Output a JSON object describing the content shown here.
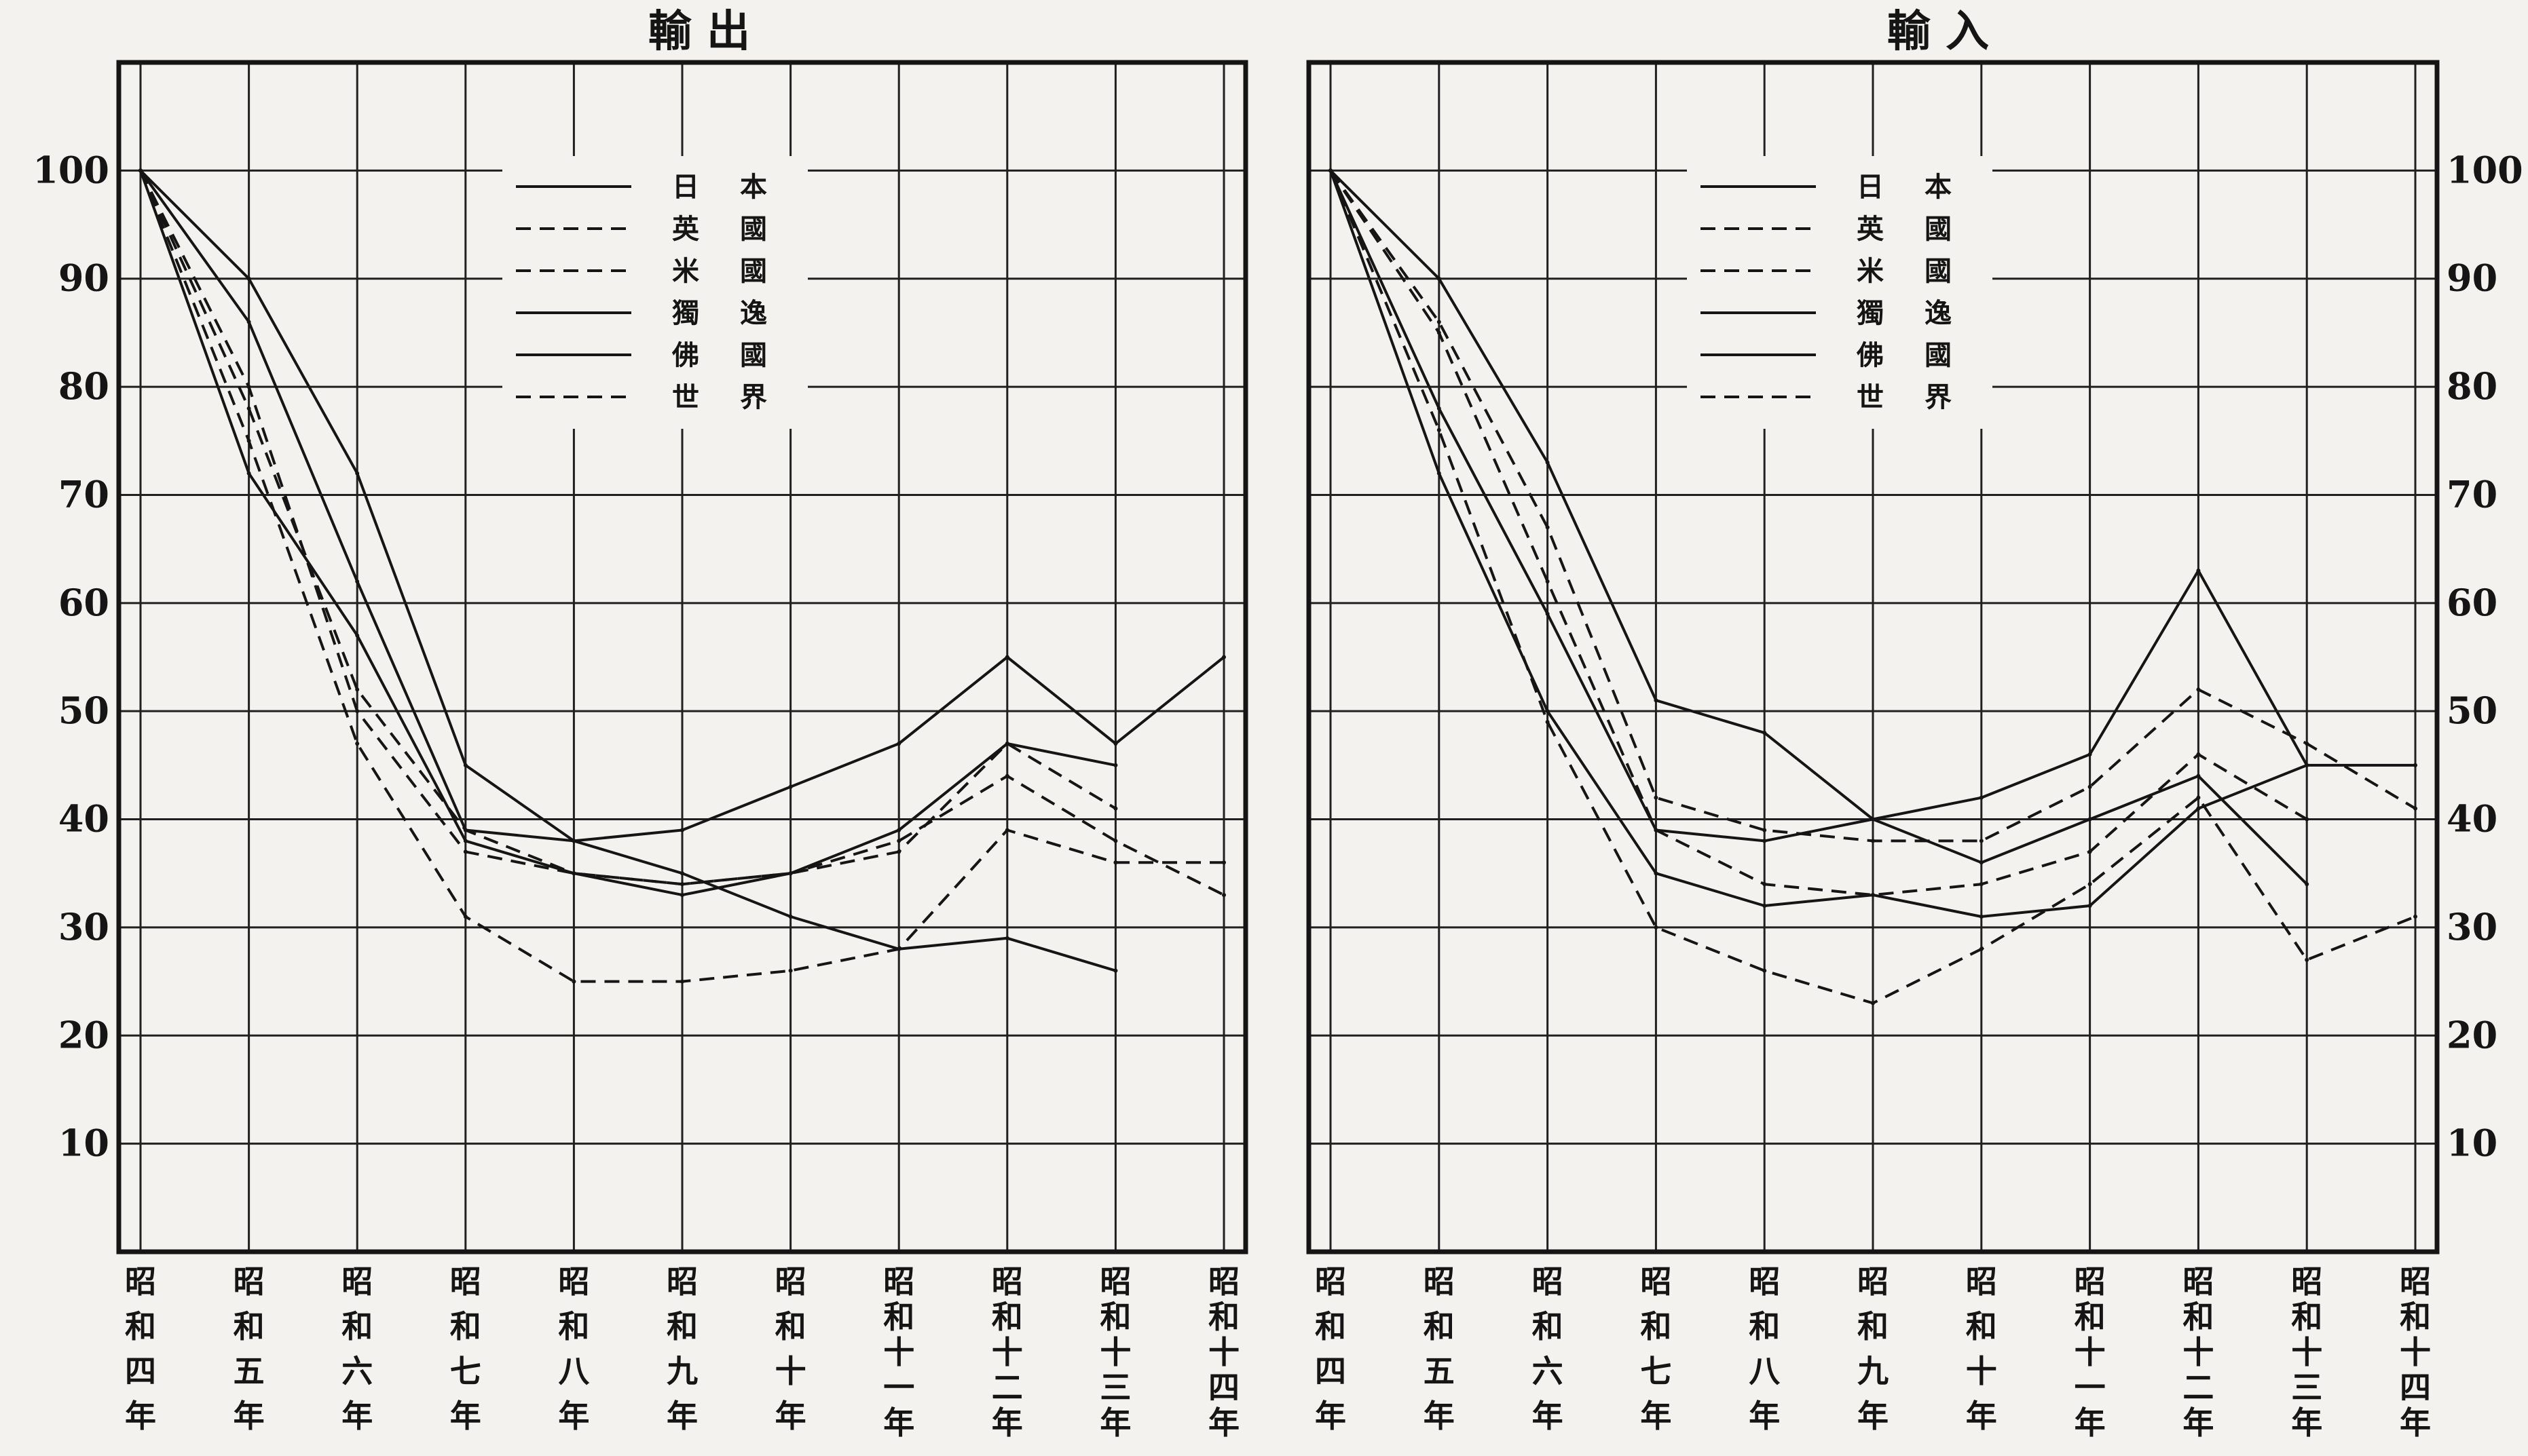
{
  "chart_data": [
    {
      "type": "line",
      "title": "輸 出",
      "categories": [
        "昭和四年",
        "昭和五年",
        "昭和六年",
        "昭和七年",
        "昭和八年",
        "昭和九年",
        "昭和十年",
        "昭和十一年",
        "昭和十二年",
        "昭和十三年",
        "昭和十四年"
      ],
      "yticks": [
        "100",
        "90",
        "80",
        "70",
        "60",
        "50",
        "40",
        "30",
        "20",
        "10"
      ],
      "ylim": [
        0,
        110
      ],
      "y_axis_side": "left",
      "grid": true,
      "legend_position": "top-center",
      "series": [
        {
          "name": "日 本",
          "dashed": false,
          "values": [
            100,
            90,
            72,
            45,
            38,
            39,
            43,
            47,
            55,
            47,
            55
          ]
        },
        {
          "name": "英 國",
          "dashed": true,
          "values": [
            100,
            80,
            50,
            37,
            35,
            34,
            35,
            37,
            47,
            41,
            null
          ]
        },
        {
          "name": "米 國",
          "dashed": true,
          "values": [
            100,
            75,
            47,
            31,
            25,
            25,
            26,
            28,
            39,
            36,
            36
          ]
        },
        {
          "name": "獨 逸",
          "dashed": false,
          "values": [
            100,
            72,
            57,
            38,
            35,
            33,
            35,
            39,
            47,
            45,
            null
          ]
        },
        {
          "name": "佛 國",
          "dashed": false,
          "values": [
            100,
            86,
            62,
            39,
            38,
            35,
            31,
            28,
            29,
            26,
            null
          ]
        },
        {
          "name": "世 界",
          "dashed": true,
          "values": [
            100,
            78,
            52,
            39,
            35,
            34,
            35,
            38,
            44,
            38,
            33
          ]
        }
      ]
    },
    {
      "type": "line",
      "title": "輸 入",
      "categories": [
        "昭和四年",
        "昭和五年",
        "昭和六年",
        "昭和七年",
        "昭和八年",
        "昭和九年",
        "昭和十年",
        "昭和十一年",
        "昭和十二年",
        "昭和十三年",
        "昭和十四年"
      ],
      "yticks": [
        "100",
        "90",
        "80",
        "70",
        "60",
        "50",
        "40",
        "30",
        "20",
        "10"
      ],
      "ylim": [
        0,
        110
      ],
      "y_axis_side": "right",
      "grid": true,
      "legend_position": "top-center",
      "series": [
        {
          "name": "日 本",
          "dashed": false,
          "values": [
            100,
            90,
            73,
            51,
            48,
            40,
            42,
            46,
            63,
            45,
            45
          ]
        },
        {
          "name": "英 國",
          "dashed": true,
          "values": [
            100,
            86,
            67,
            42,
            39,
            38,
            38,
            43,
            52,
            47,
            41
          ]
        },
        {
          "name": "米 國",
          "dashed": true,
          "values": [
            100,
            85,
            62,
            39,
            34,
            33,
            34,
            37,
            46,
            40,
            null
          ]
        },
        {
          "name": "獨 逸",
          "dashed": false,
          "values": [
            100,
            78,
            59,
            39,
            38,
            40,
            36,
            40,
            44,
            34,
            null
          ]
        },
        {
          "name": "佛 國",
          "dashed": false,
          "values": [
            100,
            72,
            50,
            35,
            32,
            33,
            31,
            32,
            41,
            45,
            null
          ]
        },
        {
          "name": "世 界",
          "dashed": true,
          "values": [
            100,
            76,
            49,
            30,
            26,
            23,
            28,
            34,
            42,
            27,
            31
          ]
        }
      ]
    }
  ]
}
